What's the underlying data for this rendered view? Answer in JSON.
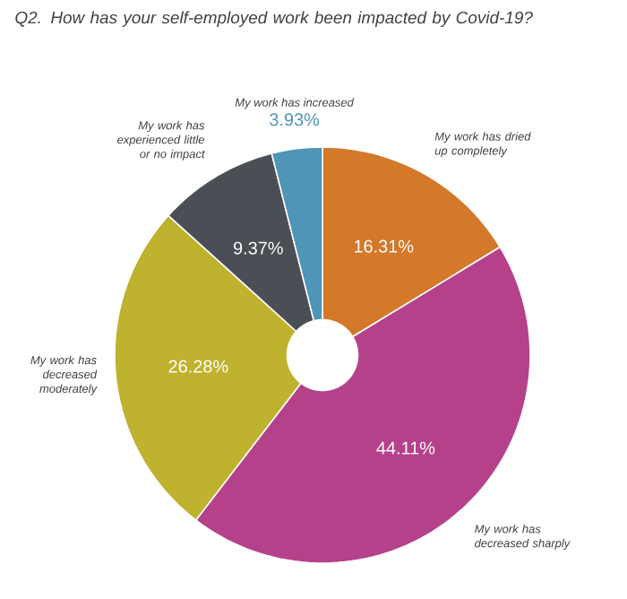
{
  "chart_data": {
    "type": "donut",
    "title": "Q2. How has your self-employed work been impacted by Covid-19?",
    "categories": [
      "My work has dried up completely",
      "My work has decreased sharply",
      "My work has decreased moderately",
      "My work has experienced little or no impact",
      "My work has increased"
    ],
    "values": [
      16.31,
      44.11,
      26.28,
      9.37,
      3.93
    ],
    "colors": [
      "#d4782a",
      "#b5418a",
      "#bfb22e",
      "#4a4f55",
      "#4f95b8"
    ],
    "value_labels": [
      "16.31%",
      "44.11%",
      "26.28%",
      "9.37%",
      "3.93%"
    ]
  }
}
